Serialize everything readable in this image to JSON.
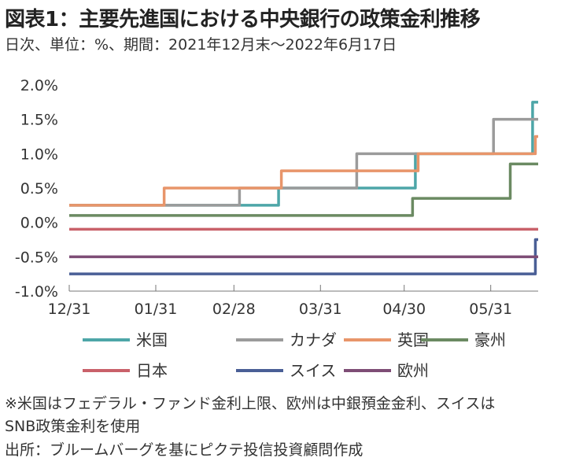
{
  "title": "図表1：主要先進国における中央銀行の政策金利推移",
  "subtitle": "日次、単位：%、期間：2021年12月末～2022年6月17日",
  "notes": [
    "※米国はフェデラル・ファンド金利上限、欧州は中銀預金金利、スイスは",
    "SNB政策金利を使用",
    "出所：ブルームバーグを基にピクテ投信投資顧問作成"
  ],
  "chart_data": {
    "type": "line",
    "step": true,
    "x_start": "2021-12-31",
    "x_end": "2022-06-17",
    "ylim": [
      -1.0,
      2.0
    ],
    "y_ticks": [
      2.0,
      1.5,
      1.0,
      0.5,
      0.0,
      -0.5,
      -1.0
    ],
    "y_tick_labels": [
      "2.0%",
      "1.5%",
      "1.0%",
      "0.5%",
      "0.0%",
      "-0.5%",
      "-1.0%"
    ],
    "x_ticks": [
      "2021-12-31",
      "2022-01-31",
      "2022-02-28",
      "2022-03-31",
      "2022-04-30",
      "2022-05-31"
    ],
    "x_tick_labels": [
      "12/31",
      "01/31",
      "02/28",
      "03/31",
      "04/30",
      "05/31"
    ],
    "grid": false,
    "legend_position": "bottom",
    "series": [
      {
        "name": "米国",
        "color": "#4da6a8",
        "points": [
          [
            "2021-12-31",
            0.25
          ],
          [
            "2022-03-16",
            0.5
          ],
          [
            "2022-05-04",
            1.0
          ],
          [
            "2022-06-15",
            1.75
          ]
        ]
      },
      {
        "name": "カナダ",
        "color": "#9b9b9b",
        "points": [
          [
            "2021-12-31",
            0.25
          ],
          [
            "2022-03-02",
            0.5
          ],
          [
            "2022-04-13",
            1.0
          ],
          [
            "2022-06-01",
            1.5
          ]
        ]
      },
      {
        "name": "英国",
        "color": "#e8956a",
        "points": [
          [
            "2021-12-31",
            0.25
          ],
          [
            "2022-02-03",
            0.5
          ],
          [
            "2022-03-17",
            0.75
          ],
          [
            "2022-05-05",
            1.0
          ],
          [
            "2022-06-16",
            1.25
          ]
        ]
      },
      {
        "name": "豪州",
        "color": "#6b8a62",
        "points": [
          [
            "2021-12-31",
            0.1
          ],
          [
            "2022-05-03",
            0.35
          ],
          [
            "2022-06-07",
            0.85
          ]
        ]
      },
      {
        "name": "日本",
        "color": "#c9616a",
        "points": [
          [
            "2021-12-31",
            -0.1
          ]
        ]
      },
      {
        "name": "スイス",
        "color": "#4a5f96",
        "points": [
          [
            "2021-12-31",
            -0.75
          ],
          [
            "2022-06-16",
            -0.25
          ]
        ]
      },
      {
        "name": "欧州",
        "color": "#7e4d76",
        "points": [
          [
            "2021-12-31",
            -0.5
          ]
        ]
      }
    ]
  }
}
